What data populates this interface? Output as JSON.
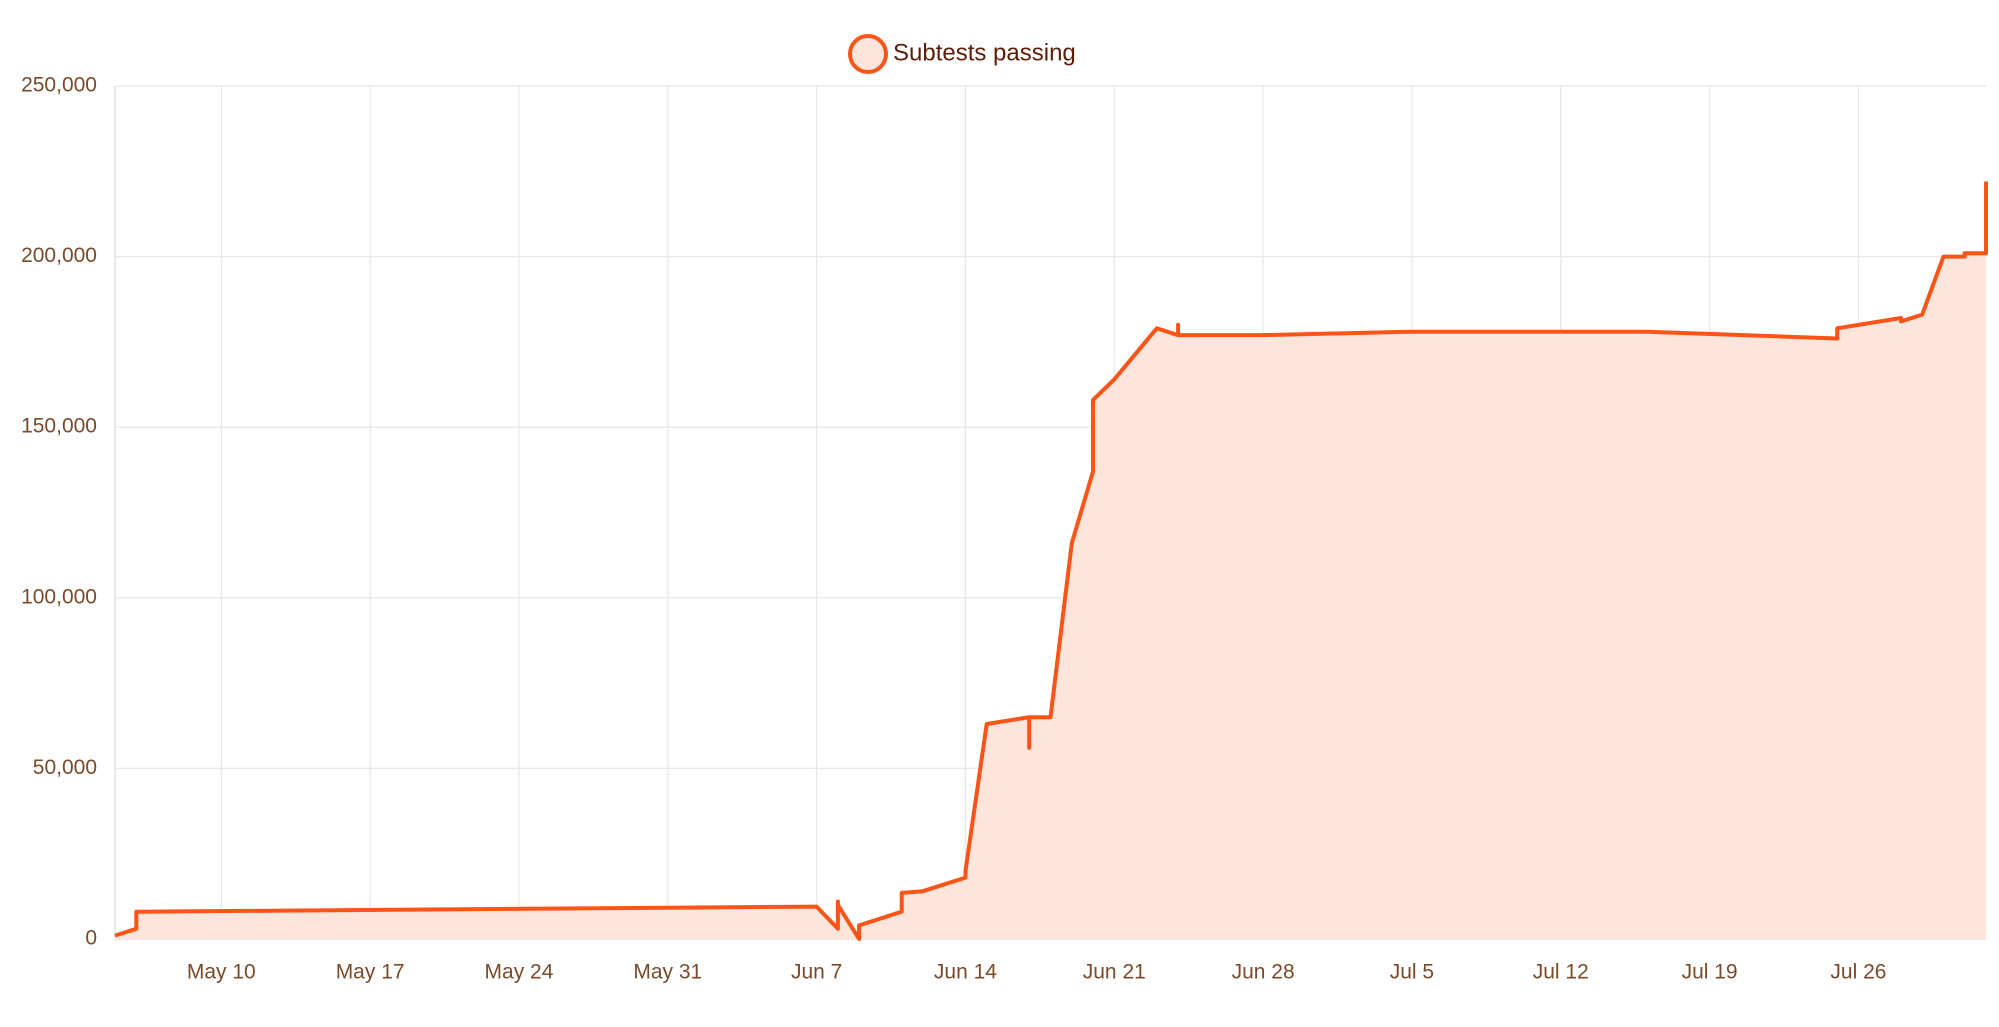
{
  "chart_data": {
    "type": "area",
    "legend_position": "top",
    "grid": true,
    "series": [
      {
        "name": "Subtests passing",
        "color": "#fa5418",
        "fill": "#fde5dc",
        "x": [
          "May 5",
          "May 6",
          "May 6",
          "Jun 7",
          "Jun 8",
          "Jun 8",
          "Jun 8",
          "Jun 9",
          "Jun 9",
          "Jun 11",
          "Jun 11",
          "Jun 12",
          "Jun 14",
          "Jun 14",
          "Jun 15",
          "Jun 16",
          "Jun 17",
          "Jun 17",
          "Jun 17",
          "Jun 18",
          "Jun 19",
          "Jun 20",
          "Jun 20",
          "Jun 20",
          "Jun 21",
          "Jun 23",
          "Jun 24",
          "Jun 24",
          "Jun 24",
          "Jun 28",
          "Jul 5",
          "Jul 16",
          "Jul 25",
          "Jul 25",
          "Jul 28",
          "Jul 28",
          "Jul 29",
          "Jul 30",
          "Jul 31",
          "Jul 31",
          "Aug 1",
          "Aug 1"
        ],
        "values": [
          1000,
          3000,
          8000,
          9500,
          3000,
          11000,
          10000,
          0,
          4000,
          8000,
          13500,
          14000,
          18000,
          20000,
          63000,
          64000,
          65000,
          56000,
          65000,
          65000,
          116000,
          137000,
          142000,
          158000,
          164000,
          179000,
          177000,
          180000,
          177000,
          177000,
          178000,
          178000,
          176000,
          179000,
          182000,
          181000,
          183000,
          200000,
          200000,
          201000,
          201000,
          222000
        ]
      }
    ],
    "xlim": [
      "May 5",
      "Aug 1"
    ],
    "xticks": [
      "May 10",
      "May 17",
      "May 24",
      "May 31",
      "Jun 7",
      "Jun 14",
      "Jun 21",
      "Jun 28",
      "Jul 5",
      "Jul 12",
      "Jul 19",
      "Jul 26"
    ],
    "ylim": [
      0,
      250000
    ],
    "yticks": [
      0,
      {
        "value": 50000,
        "label": "50,000"
      },
      {
        "value": 100000,
        "label": "100,000"
      },
      {
        "value": 150000,
        "label": "150,000"
      },
      {
        "value": 200000,
        "label": "200,000"
      },
      {
        "value": 250000,
        "label": "250,000"
      }
    ]
  }
}
